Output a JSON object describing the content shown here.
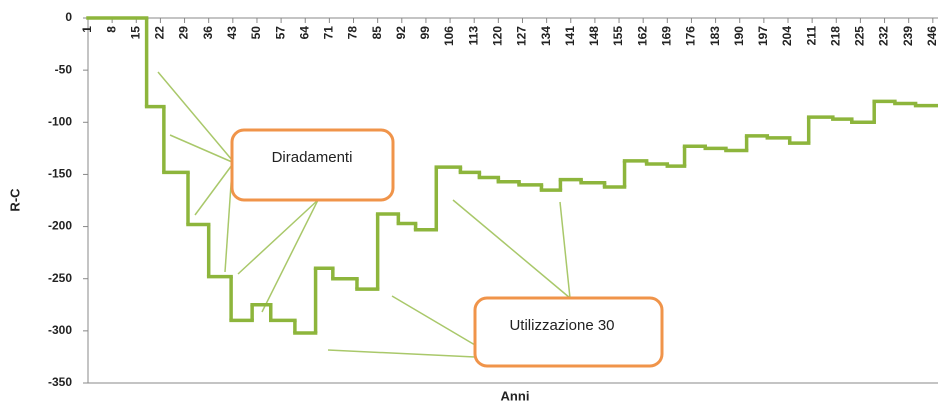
{
  "chart_data": {
    "type": "line",
    "step": true,
    "xlabel": "Anni",
    "ylabel": "R-C",
    "x": [
      1,
      18,
      23,
      30,
      36,
      42.5,
      48.6,
      54,
      61,
      67,
      72,
      79,
      85,
      91,
      96,
      102,
      109,
      114.5,
      120,
      126,
      132.5,
      138,
      144,
      150.8,
      156.6,
      163,
      169,
      174,
      180,
      186,
      192,
      198,
      204.5,
      210,
      217,
      222.5,
      229,
      235,
      241,
      247.5
    ],
    "series": [
      {
        "name": "R-C",
        "color": "#8db53c",
        "values": [
          0,
          -85,
          -148,
          -198,
          -248,
          -290,
          -275,
          -290,
          -302,
          -240,
          -250,
          -260,
          -188,
          -197,
          -203,
          -143,
          -148,
          -153,
          -157,
          -160,
          -165,
          -155,
          -158,
          -162,
          -137,
          -140,
          -142,
          -123,
          -125,
          -127,
          -113,
          -115,
          -120,
          -95,
          -97,
          -100,
          -80,
          -82,
          -84,
          -84
        ]
      }
    ],
    "xlim": [
      1,
      247.5
    ],
    "xticks": [
      1,
      8,
      15,
      22,
      29,
      36,
      43,
      50,
      57,
      64,
      71,
      78,
      85,
      92,
      99,
      106,
      113,
      120,
      127,
      134,
      141,
      148,
      155,
      162,
      169,
      176,
      183,
      190,
      197,
      204,
      211,
      218,
      225,
      232,
      239,
      246
    ],
    "ylim": [
      -350,
      0
    ],
    "yticks": [
      0,
      -50,
      -100,
      -150,
      -200,
      -250,
      -300,
      -350
    ],
    "annotations": [
      "Diradamenti",
      "Utilizzazione 30"
    ],
    "grid": false
  }
}
